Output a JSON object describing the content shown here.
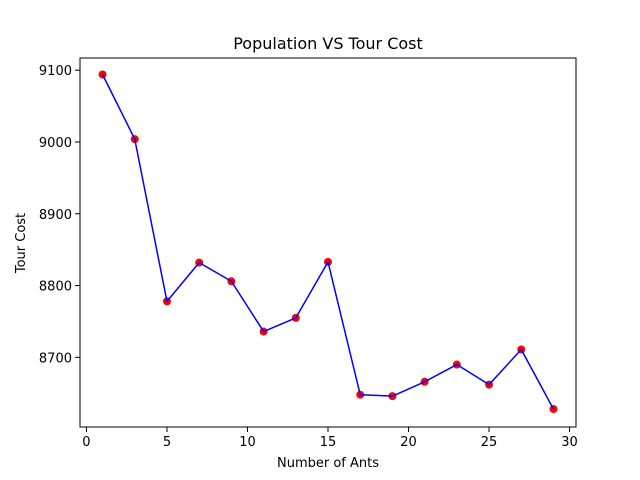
{
  "chart_data": {
    "type": "line",
    "title": "Population VS Tour Cost",
    "xlabel": "Number of Ants",
    "ylabel": "Tour Cost",
    "xlim": [
      -0.4,
      30.4
    ],
    "ylim": [
      8603,
      9117
    ],
    "xticks": [
      0,
      5,
      10,
      15,
      20,
      25,
      30
    ],
    "yticks": [
      8700,
      8800,
      8900,
      9000,
      9100
    ],
    "grid": false,
    "series": [
      {
        "name": "Tour Cost",
        "line_color": "#0000ff",
        "marker_color": "#ff0000",
        "x": [
          1,
          3,
          5,
          7,
          9,
          11,
          13,
          15,
          17,
          19,
          21,
          23,
          25,
          27,
          29
        ],
        "y": [
          9094,
          9004,
          8778,
          8832,
          8806,
          8736,
          8755,
          8833,
          8648,
          8646,
          8666,
          8690,
          8662,
          8711,
          8628
        ]
      }
    ]
  }
}
